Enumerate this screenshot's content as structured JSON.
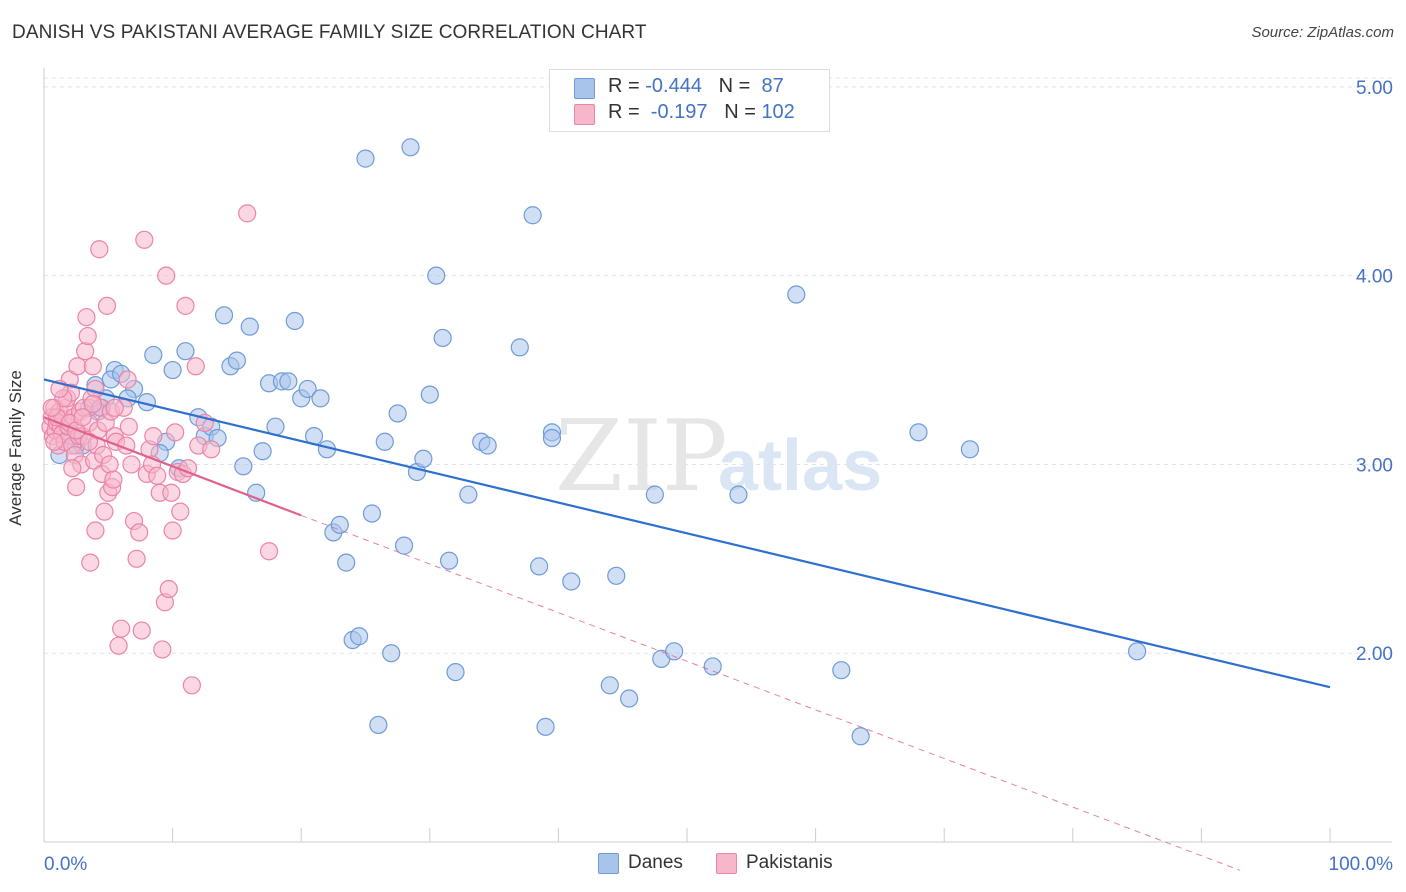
{
  "header": {
    "title": "DANISH VS PAKISTANI AVERAGE FAMILY SIZE CORRELATION CHART",
    "source": "Source: ZipAtlas.com"
  },
  "watermark": {
    "zip": "ZIP",
    "atlas": "atlas"
  },
  "legend": {
    "rows": [
      {
        "r_label": "R = ",
        "r_value": "-0.444",
        "n_label": "N = ",
        "n_value": " 87"
      },
      {
        "r_label": "R = ",
        "r_value": " -0.197",
        "n_label": "N = ",
        "n_value": "102"
      }
    ]
  },
  "bottom_legend": {
    "danes": "Danes",
    "pakistanis": "Pakistanis"
  },
  "colors": {
    "danes_fill": "#a9c4eb",
    "danes_stroke": "#6f9bd8",
    "danes_line": "#2f6fcf",
    "pak_fill": "#f6b7cb",
    "pak_stroke": "#eb84a6",
    "pak_line": "#e0628c",
    "axis_text": "#4472c4",
    "grid": "#e3e3e3"
  },
  "chart_data": {
    "type": "scatter",
    "title": "DANISH VS PAKISTANI AVERAGE FAMILY SIZE CORRELATION CHART",
    "xlabel": "",
    "ylabel": "Average Family Size",
    "xlim": [
      0,
      100
    ],
    "ylim": [
      1.0,
      5.1
    ],
    "x_tick_labels": [
      "0.0%",
      "100.0%"
    ],
    "y_ticks": [
      2.0,
      3.0,
      4.0,
      5.0
    ],
    "y_tick_labels": [
      "2.00",
      "3.00",
      "4.00",
      "5.00"
    ],
    "grid": true,
    "legend_position": "top-center",
    "series": [
      {
        "name": "Danes",
        "R": -0.444,
        "N": 87,
        "trend": {
          "x": [
            0,
            100
          ],
          "y": [
            3.45,
            1.82
          ]
        },
        "points": [
          [
            1.2,
            3.05
          ],
          [
            1.8,
            3.2
          ],
          [
            2.5,
            3.1
          ],
          [
            3.0,
            3.1
          ],
          [
            3.5,
            3.3
          ],
          [
            4.0,
            3.42
          ],
          [
            4.5,
            3.3
          ],
          [
            4.8,
            3.35
          ],
          [
            5.5,
            3.5
          ],
          [
            5.2,
            3.45
          ],
          [
            6.0,
            3.48
          ],
          [
            7.0,
            3.4
          ],
          [
            8.0,
            3.33
          ],
          [
            8.5,
            3.58
          ],
          [
            9.5,
            3.12
          ],
          [
            9.0,
            3.06
          ],
          [
            10.5,
            2.98
          ],
          [
            10.0,
            3.5
          ],
          [
            11.0,
            3.6
          ],
          [
            12.0,
            3.25
          ],
          [
            12.5,
            3.15
          ],
          [
            13.0,
            3.2
          ],
          [
            13.5,
            3.14
          ],
          [
            14.0,
            3.79
          ],
          [
            14.5,
            3.52
          ],
          [
            15.0,
            3.55
          ],
          [
            15.5,
            2.99
          ],
          [
            16.0,
            3.73
          ],
          [
            16.5,
            2.85
          ],
          [
            17.0,
            3.07
          ],
          [
            17.5,
            3.43
          ],
          [
            18.0,
            3.2
          ],
          [
            18.5,
            3.44
          ],
          [
            19.0,
            3.44
          ],
          [
            19.5,
            3.76
          ],
          [
            20.0,
            3.35
          ],
          [
            20.5,
            3.4
          ],
          [
            21.0,
            3.15
          ],
          [
            21.5,
            3.35
          ],
          [
            22.0,
            3.08
          ],
          [
            22.5,
            2.64
          ],
          [
            23.0,
            2.68
          ],
          [
            23.5,
            2.48
          ],
          [
            24.0,
            2.07
          ],
          [
            24.5,
            2.09
          ],
          [
            25.0,
            4.62
          ],
          [
            25.5,
            2.74
          ],
          [
            26.0,
            1.62
          ],
          [
            26.5,
            3.12
          ],
          [
            27.0,
            2.0
          ],
          [
            27.5,
            3.27
          ],
          [
            28.0,
            2.57
          ],
          [
            28.5,
            4.68
          ],
          [
            29.0,
            2.96
          ],
          [
            29.5,
            3.03
          ],
          [
            30.0,
            3.37
          ],
          [
            30.5,
            4.0
          ],
          [
            31.0,
            3.67
          ],
          [
            31.5,
            2.49
          ],
          [
            32.0,
            1.9
          ],
          [
            33.0,
            2.84
          ],
          [
            34.0,
            3.12
          ],
          [
            34.5,
            3.1
          ],
          [
            37.0,
            3.62
          ],
          [
            38.0,
            4.32
          ],
          [
            38.5,
            2.46
          ],
          [
            39.0,
            1.61
          ],
          [
            39.5,
            3.17
          ],
          [
            41.0,
            2.38
          ],
          [
            44.5,
            2.41
          ],
          [
            44.0,
            1.83
          ],
          [
            45.5,
            1.76
          ],
          [
            47.5,
            2.84
          ],
          [
            48.0,
            1.97
          ],
          [
            49.0,
            2.01
          ],
          [
            52.0,
            1.93
          ],
          [
            54.0,
            2.84
          ],
          [
            58.5,
            3.9
          ],
          [
            62.0,
            1.91
          ],
          [
            63.5,
            1.56
          ],
          [
            68.0,
            3.17
          ],
          [
            72.0,
            3.08
          ],
          [
            85.0,
            2.01
          ],
          [
            39.5,
            3.14
          ],
          [
            4.2,
            3.28
          ],
          [
            2.2,
            3.15
          ],
          [
            6.5,
            3.35
          ]
        ]
      },
      {
        "name": "Pakistanis",
        "R": -0.197,
        "N": 102,
        "trend": {
          "x": [
            0,
            20
          ],
          "y": [
            3.25,
            2.73
          ]
        },
        "trend_extension": {
          "x": [
            20,
            93
          ],
          "y": [
            2.73,
            0.85
          ]
        },
        "points": [
          [
            0.5,
            3.2
          ],
          [
            0.6,
            3.25
          ],
          [
            0.7,
            3.15
          ],
          [
            0.8,
            3.3
          ],
          [
            0.9,
            3.18
          ],
          [
            1.0,
            3.22
          ],
          [
            1.1,
            3.1
          ],
          [
            1.2,
            3.28
          ],
          [
            1.3,
            3.2
          ],
          [
            1.4,
            3.16
          ],
          [
            1.5,
            3.24
          ],
          [
            1.6,
            3.12
          ],
          [
            1.7,
            3.3
          ],
          [
            1.8,
            3.35
          ],
          [
            1.9,
            3.2
          ],
          [
            2.0,
            3.45
          ],
          [
            2.1,
            3.38
          ],
          [
            2.2,
            3.1
          ],
          [
            2.3,
            3.25
          ],
          [
            2.4,
            3.05
          ],
          [
            2.5,
            2.88
          ],
          [
            2.6,
            3.52
          ],
          [
            2.7,
            3.15
          ],
          [
            2.8,
            3.28
          ],
          [
            2.9,
            3.0
          ],
          [
            3.0,
            3.15
          ],
          [
            3.1,
            3.3
          ],
          [
            3.2,
            3.6
          ],
          [
            3.3,
            3.78
          ],
          [
            3.4,
            3.68
          ],
          [
            3.5,
            3.22
          ],
          [
            3.6,
            2.48
          ],
          [
            3.7,
            3.35
          ],
          [
            3.8,
            3.52
          ],
          [
            3.9,
            3.02
          ],
          [
            4.0,
            2.65
          ],
          [
            4.1,
            3.1
          ],
          [
            4.2,
            3.18
          ],
          [
            4.3,
            4.14
          ],
          [
            4.4,
            3.3
          ],
          [
            4.5,
            2.95
          ],
          [
            4.6,
            3.05
          ],
          [
            4.7,
            2.75
          ],
          [
            4.8,
            3.22
          ],
          [
            4.9,
            3.84
          ],
          [
            5.0,
            2.85
          ],
          [
            5.1,
            3.0
          ],
          [
            5.2,
            3.28
          ],
          [
            5.3,
            2.88
          ],
          [
            5.4,
            2.92
          ],
          [
            5.5,
            3.15
          ],
          [
            5.6,
            3.12
          ],
          [
            5.8,
            2.04
          ],
          [
            6.0,
            2.13
          ],
          [
            6.2,
            3.3
          ],
          [
            6.4,
            3.1
          ],
          [
            6.5,
            3.45
          ],
          [
            6.6,
            3.2
          ],
          [
            6.8,
            3.0
          ],
          [
            7.0,
            2.7
          ],
          [
            7.2,
            2.5
          ],
          [
            7.4,
            2.64
          ],
          [
            7.6,
            2.12
          ],
          [
            7.8,
            4.19
          ],
          [
            8.0,
            2.95
          ],
          [
            8.2,
            3.08
          ],
          [
            8.4,
            3.0
          ],
          [
            8.5,
            3.15
          ],
          [
            8.8,
            2.94
          ],
          [
            9.0,
            2.85
          ],
          [
            9.2,
            2.02
          ],
          [
            9.4,
            2.27
          ],
          [
            9.5,
            4.0
          ],
          [
            9.7,
            2.34
          ],
          [
            9.9,
            2.85
          ],
          [
            10.0,
            2.65
          ],
          [
            10.2,
            3.17
          ],
          [
            10.4,
            2.96
          ],
          [
            10.6,
            2.75
          ],
          [
            10.8,
            2.95
          ],
          [
            11.0,
            3.84
          ],
          [
            11.2,
            2.98
          ],
          [
            11.5,
            1.83
          ],
          [
            11.8,
            3.52
          ],
          [
            12.0,
            3.1
          ],
          [
            12.5,
            3.22
          ],
          [
            13.0,
            3.08
          ],
          [
            15.8,
            4.33
          ],
          [
            17.5,
            2.54
          ],
          [
            1.0,
            3.25
          ],
          [
            0.8,
            3.12
          ],
          [
            1.5,
            3.35
          ],
          [
            2.0,
            3.22
          ],
          [
            2.5,
            3.18
          ],
          [
            3.0,
            3.25
          ],
          [
            3.5,
            3.12
          ],
          [
            4.0,
            3.4
          ],
          [
            1.2,
            3.4
          ],
          [
            0.6,
            3.3
          ],
          [
            2.2,
            2.98
          ],
          [
            3.8,
            3.32
          ],
          [
            5.5,
            3.3
          ]
        ]
      }
    ]
  }
}
